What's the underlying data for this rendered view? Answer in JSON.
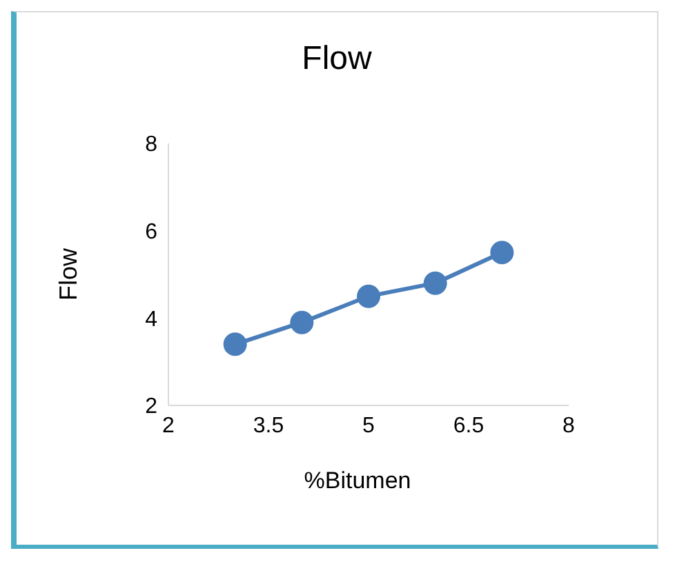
{
  "chart_data": {
    "type": "line",
    "title": "Flow",
    "xlabel": "%Bitumen",
    "ylabel": "Flow",
    "x": [
      3,
      4,
      5,
      6,
      7
    ],
    "series": [
      {
        "color": "#4a7ebb",
        "values": [
          3.4,
          3.9,
          4.5,
          4.8,
          5.5
        ]
      }
    ],
    "xlim": [
      2,
      8
    ],
    "xticks": [
      2,
      3.5,
      5,
      6.5,
      8
    ],
    "ylim": [
      2,
      8
    ],
    "yticks": [
      2,
      4,
      6,
      8
    ],
    "grid": false,
    "legend": false,
    "marker": "circle",
    "line_style": "solid"
  }
}
